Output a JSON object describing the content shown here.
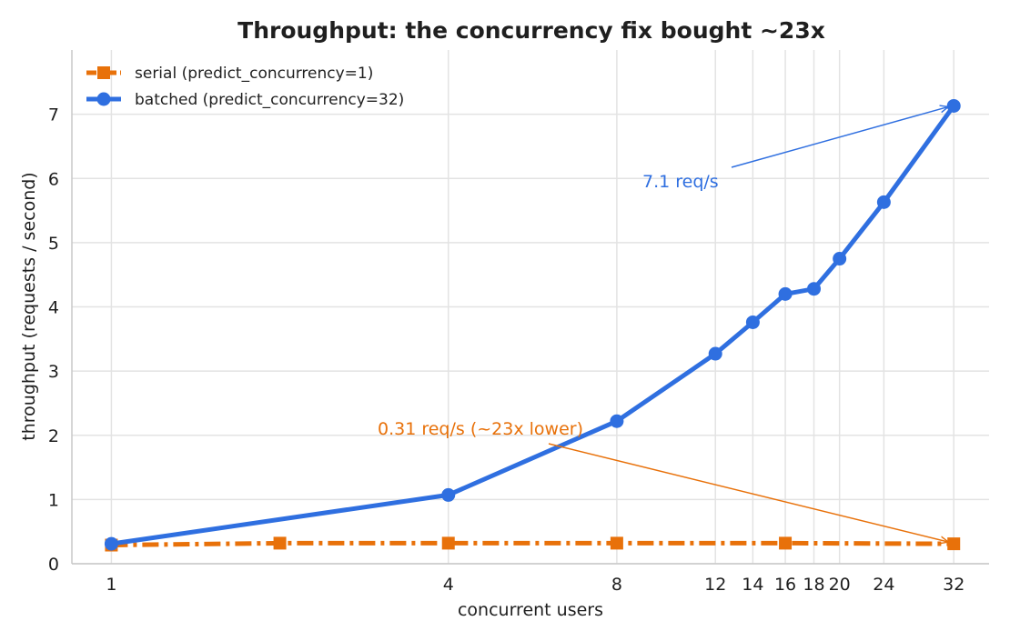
{
  "chart_data": {
    "type": "line",
    "title": "Throughput: the concurrency fix bought ~23x",
    "xlabel": "concurrent users",
    "ylabel": "throughput (requests / second)",
    "x_scale": "log2",
    "xlim": [
      0.85,
      37
    ],
    "ylim": [
      0,
      8
    ],
    "x_ticks": [
      1,
      4,
      8,
      12,
      14,
      16,
      18,
      20,
      24,
      32
    ],
    "y_ticks": [
      0,
      1,
      2,
      3,
      4,
      5,
      6,
      7
    ],
    "grid": true,
    "legend_position": "top-left",
    "series": [
      {
        "name": "serial (predict_concurrency=1)",
        "color": "#e8710a",
        "line_style": "dash-dot",
        "marker": "square",
        "x": [
          1,
          2,
          4,
          8,
          16,
          32
        ],
        "y": [
          0.29,
          0.32,
          0.32,
          0.32,
          0.32,
          0.31
        ]
      },
      {
        "name": "batched (predict_concurrency=32)",
        "color": "#2f6fe0",
        "line_style": "solid",
        "marker": "circle",
        "x": [
          1,
          4,
          8,
          12,
          14,
          16,
          18,
          20,
          24,
          32
        ],
        "y": [
          0.31,
          1.07,
          2.22,
          3.27,
          3.76,
          4.2,
          4.28,
          4.75,
          5.63,
          7.13
        ]
      }
    ],
    "annotations": [
      {
        "text": "7.1 req/s",
        "color": "#2f6fe0",
        "text_at": [
          10.3,
          5.9
        ],
        "point": [
          32,
          7.13
        ]
      },
      {
        "text": "0.31 req/s  (~23x lower)",
        "color": "#e8710a",
        "text_at": [
          3.2,
          2.05
        ],
        "point": [
          32,
          0.31
        ]
      }
    ]
  }
}
